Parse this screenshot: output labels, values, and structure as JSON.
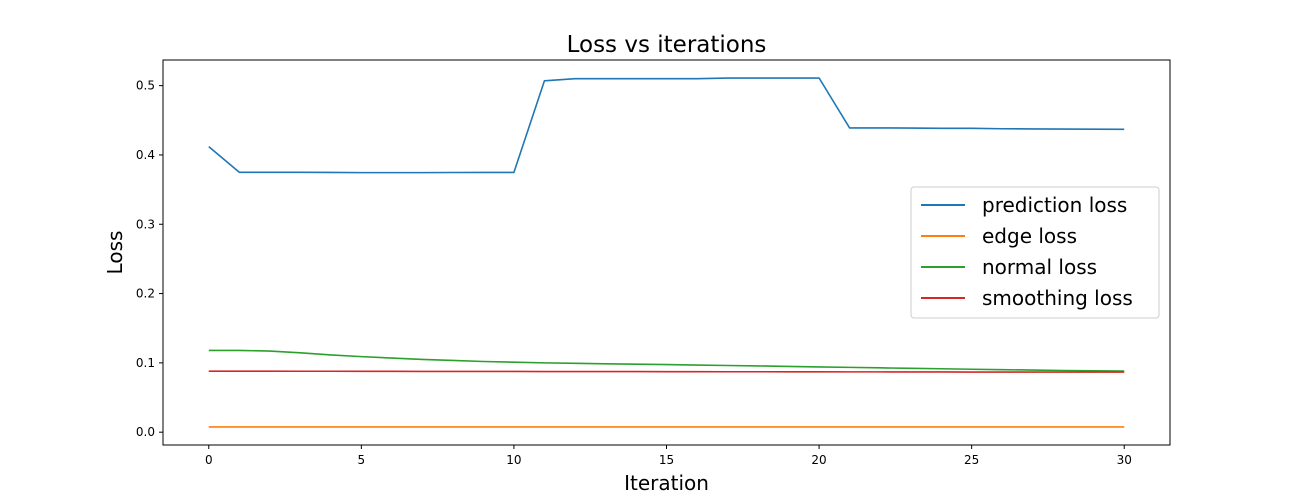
{
  "chart_data": {
    "type": "line",
    "title": "Loss vs iterations",
    "xlabel": "Iteration",
    "ylabel": "Loss",
    "xlim": [
      -1.5,
      31.5
    ],
    "ylim": [
      -0.0185,
      0.537
    ],
    "xticks": [
      0,
      5,
      10,
      15,
      20,
      25,
      30
    ],
    "yticks": [
      0.0,
      0.1,
      0.2,
      0.3,
      0.4,
      0.5
    ],
    "ytick_labels": [
      "0.0",
      "0.1",
      "0.2",
      "0.3",
      "0.4",
      "0.5"
    ],
    "grid": false,
    "legend_position": "right",
    "x": [
      0,
      1,
      2,
      3,
      4,
      5,
      6,
      7,
      8,
      9,
      10,
      11,
      12,
      13,
      14,
      15,
      16,
      17,
      18,
      19,
      20,
      21,
      22,
      23,
      24,
      25,
      26,
      27,
      28,
      29,
      30
    ],
    "series": [
      {
        "name": "prediction loss",
        "color": "#1f77b4",
        "values": [
          0.412,
          0.375,
          0.375,
          0.375,
          0.3748,
          0.3745,
          0.3745,
          0.3745,
          0.3747,
          0.3748,
          0.3748,
          0.507,
          0.51,
          0.51,
          0.51,
          0.51,
          0.51,
          0.511,
          0.511,
          0.511,
          0.511,
          0.439,
          0.439,
          0.4388,
          0.4385,
          0.4385,
          0.4378,
          0.4376,
          0.4374,
          0.4372,
          0.437
        ]
      },
      {
        "name": "edge loss",
        "color": "#ff7f0e",
        "values": [
          0.0075,
          0.0075,
          0.0075,
          0.0075,
          0.0075,
          0.0075,
          0.0075,
          0.0075,
          0.0075,
          0.0075,
          0.0075,
          0.0075,
          0.0075,
          0.0075,
          0.0075,
          0.0075,
          0.0075,
          0.0075,
          0.0075,
          0.0075,
          0.0075,
          0.0075,
          0.0075,
          0.0075,
          0.0075,
          0.0075,
          0.0075,
          0.0075,
          0.0075,
          0.0075,
          0.0075
        ]
      },
      {
        "name": "normal loss",
        "color": "#2ca02c",
        "values": [
          0.118,
          0.118,
          0.117,
          0.1145,
          0.1115,
          0.109,
          0.107,
          0.105,
          0.1035,
          0.102,
          0.101,
          0.1,
          0.0993,
          0.0987,
          0.0981,
          0.0975,
          0.0969,
          0.0962,
          0.0956,
          0.0949,
          0.0942,
          0.0935,
          0.0928,
          0.0921,
          0.0915,
          0.0908,
          0.0902,
          0.0896,
          0.089,
          0.0885,
          0.0882
        ]
      },
      {
        "name": "smoothing loss",
        "color": "#d62728",
        "values": [
          0.088,
          0.088,
          0.088,
          0.0879,
          0.0879,
          0.0878,
          0.0878,
          0.0877,
          0.0877,
          0.0876,
          0.0876,
          0.0875,
          0.0875,
          0.0874,
          0.0874,
          0.0873,
          0.0873,
          0.0872,
          0.0872,
          0.0871,
          0.0871,
          0.087,
          0.087,
          0.0869,
          0.0869,
          0.0868,
          0.0868,
          0.0868,
          0.0867,
          0.0867,
          0.0867
        ]
      }
    ]
  }
}
